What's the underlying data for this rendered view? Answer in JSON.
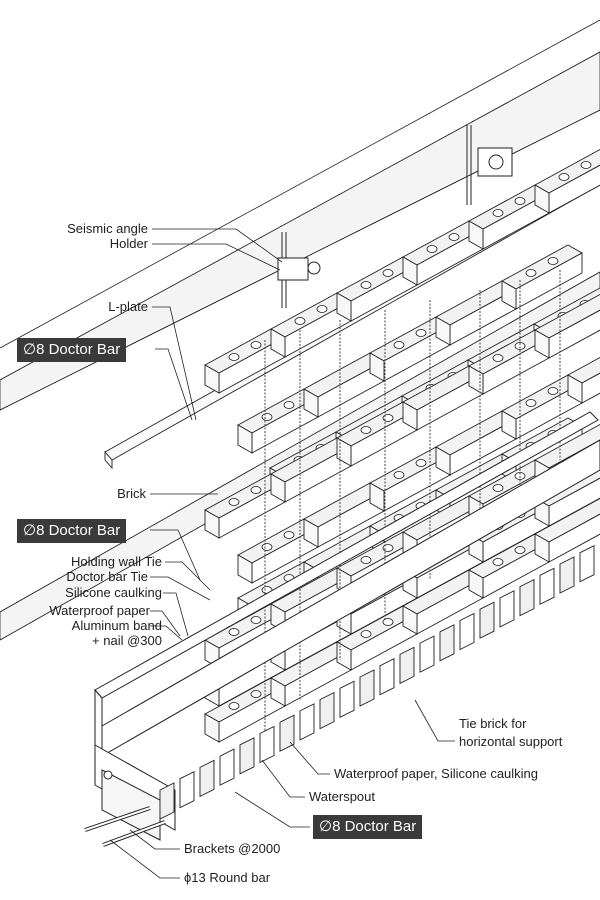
{
  "labels": {
    "seismic_angle": "Seismic angle",
    "holder": "Holder",
    "l_plate": "L-plate",
    "doctor_bar_top": "∅8 Doctor Bar",
    "brick": "Brick",
    "doctor_bar_mid": "∅8 Doctor Bar",
    "holding_wall_tie": "Holding wall Tie",
    "doctor_bar_tie": "Doctor bar Tie",
    "silicone_caulking": "Silicone caulking",
    "waterproof_paper": "Waterproof paper",
    "aluminum_band": "Aluminum band",
    "nail_300": "+ nail @300",
    "tie_brick_1": "Tie brick for",
    "tie_brick_2": "horizontal support",
    "waterproof_silicone": "Waterproof paper, Silicone caulking",
    "waterspout": "Waterspout",
    "doctor_bar_bottom": "∅8 Doctor Bar",
    "brackets": "Brackets @2000",
    "round_bar": "ϕ13 Round bar"
  },
  "colors": {
    "line": "#222222",
    "tag_bg": "#3a3a3a",
    "tag_text": "#ffffff",
    "brick_top": "#f2f2f2",
    "brick_face": "#ffffff",
    "wall_band": "#eeeeee"
  }
}
